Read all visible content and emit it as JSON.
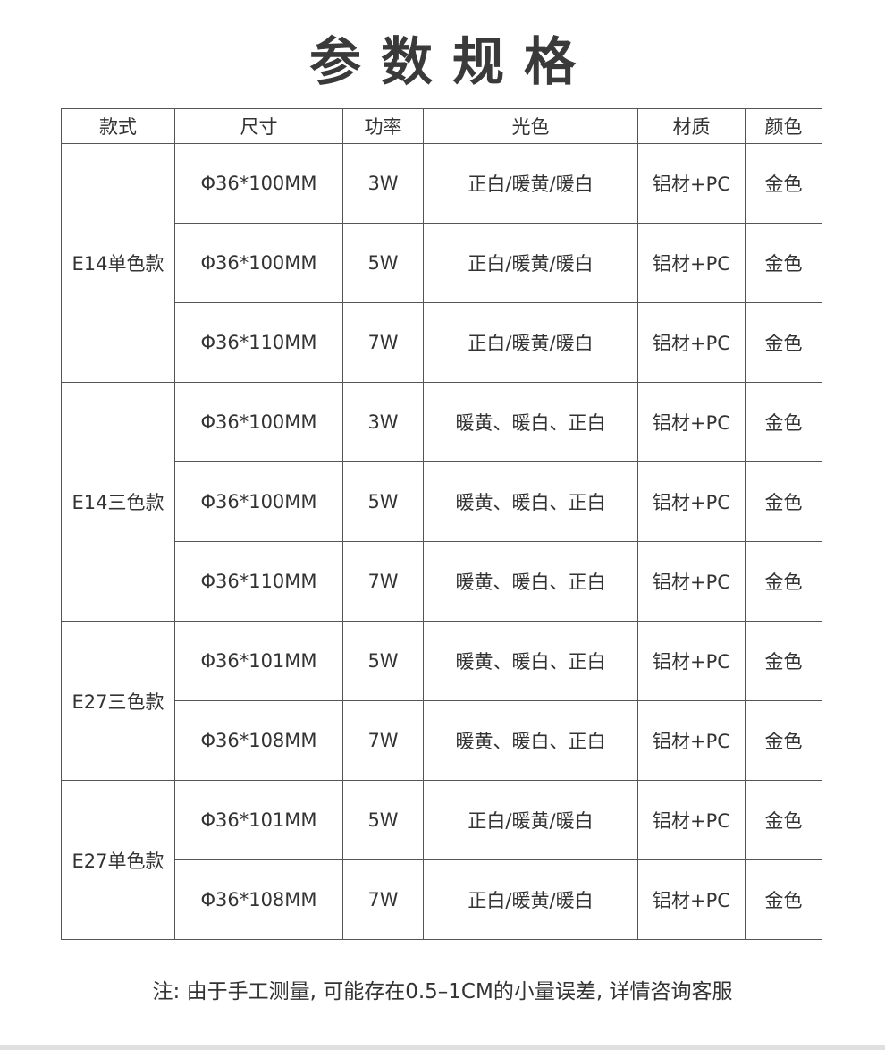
{
  "title": "参数规格",
  "headers": [
    "款式",
    "尺寸",
    "功率",
    "光色",
    "材质",
    "颜色"
  ],
  "groups": [
    {
      "model": "E14单色款",
      "rows": [
        {
          "size": "Φ36*100MM",
          "power": "3W",
          "light": "正白/暖黄/暖白",
          "material": "铝材+PC",
          "color": "金色"
        },
        {
          "size": "Φ36*100MM",
          "power": "5W",
          "light": "正白/暖黄/暖白",
          "material": "铝材+PC",
          "color": "金色"
        },
        {
          "size": "Φ36*110MM",
          "power": "7W",
          "light": "正白/暖黄/暖白",
          "material": "铝材+PC",
          "color": "金色"
        }
      ]
    },
    {
      "model": "E14三色款",
      "rows": [
        {
          "size": "Φ36*100MM",
          "power": "3W",
          "light": "暖黄、暖白、正白",
          "material": "铝材+PC",
          "color": "金色"
        },
        {
          "size": "Φ36*100MM",
          "power": "5W",
          "light": "暖黄、暖白、正白",
          "material": "铝材+PC",
          "color": "金色"
        },
        {
          "size": "Φ36*110MM",
          "power": "7W",
          "light": "暖黄、暖白、正白",
          "material": "铝材+PC",
          "color": "金色"
        }
      ]
    },
    {
      "model": "E27三色款",
      "rows": [
        {
          "size": "Φ36*101MM",
          "power": "5W",
          "light": "暖黄、暖白、正白",
          "material": "铝材+PC",
          "color": "金色"
        },
        {
          "size": "Φ36*108MM",
          "power": "7W",
          "light": "暖黄、暖白、正白",
          "material": "铝材+PC",
          "color": "金色"
        }
      ]
    },
    {
      "model": "E27单色款",
      "rows": [
        {
          "size": "Φ36*101MM",
          "power": "5W",
          "light": "正白/暖黄/暖白",
          "material": "铝材+PC",
          "color": "金色"
        },
        {
          "size": "Φ36*108MM",
          "power": "7W",
          "light": "正白/暖黄/暖白",
          "material": "铝材+PC",
          "color": "金色"
        }
      ]
    }
  ],
  "note": "注: 由于手工测量, 可能存在0.5–1CM的小量误差, 详情咨询客服"
}
